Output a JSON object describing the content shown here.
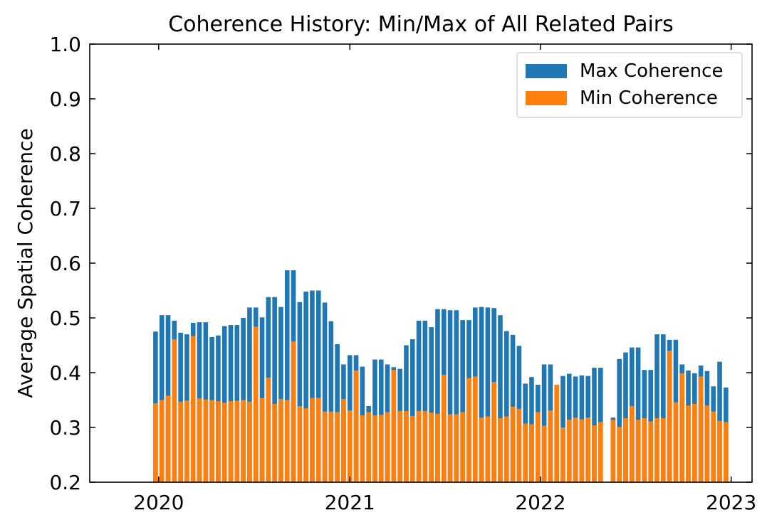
{
  "chart_data": {
    "type": "bar",
    "title": "Coherence History: Min/Max of All Related Pairs",
    "xlabel": "",
    "ylabel": "Average Spatial Coherence",
    "ylim": [
      0.2,
      1.0
    ],
    "xlim": [
      "2019-08-22",
      "2023-02-10"
    ],
    "yticks": [
      0.2,
      0.3,
      0.4,
      0.5,
      0.6,
      0.7,
      0.8,
      0.9,
      1.0
    ],
    "ytick_labels": [
      "0.2",
      "0.3",
      "0.4",
      "0.5",
      "0.6",
      "0.7",
      "0.8",
      "0.9",
      "1.0"
    ],
    "xticks": [
      "2020-01-01",
      "2021-01-01",
      "2022-01-01",
      "2023-01-01"
    ],
    "xtick_labels": [
      "2020",
      "2021",
      "2022",
      "2023"
    ],
    "bar_width_days": 9,
    "grid": false,
    "legend": {
      "position": "top-right"
    },
    "x": [
      "2019-12-26",
      "2020-01-07",
      "2020-01-19",
      "2020-01-31",
      "2020-02-12",
      "2020-02-24",
      "2020-03-07",
      "2020-03-19",
      "2020-03-31",
      "2020-04-12",
      "2020-04-24",
      "2020-05-06",
      "2020-05-18",
      "2020-05-30",
      "2020-06-11",
      "2020-06-23",
      "2020-07-05",
      "2020-07-17",
      "2020-07-29",
      "2020-08-10",
      "2020-08-22",
      "2020-09-03",
      "2020-09-15",
      "2020-09-27",
      "2020-10-09",
      "2020-10-21",
      "2020-11-02",
      "2020-11-14",
      "2020-11-26",
      "2020-12-08",
      "2020-12-20",
      "2021-01-01",
      "2021-01-13",
      "2021-01-25",
      "2021-02-06",
      "2021-02-18",
      "2021-03-02",
      "2021-03-14",
      "2021-03-26",
      "2021-04-07",
      "2021-04-19",
      "2021-05-01",
      "2021-05-13",
      "2021-05-25",
      "2021-06-06",
      "2021-06-18",
      "2021-06-30",
      "2021-07-12",
      "2021-07-24",
      "2021-08-05",
      "2021-08-17",
      "2021-08-29",
      "2021-09-10",
      "2021-09-22",
      "2021-10-04",
      "2021-10-16",
      "2021-10-28",
      "2021-11-09",
      "2021-11-21",
      "2021-12-03",
      "2021-12-15",
      "2021-12-27",
      "2022-01-08",
      "2022-01-20",
      "2022-02-01",
      "2022-02-13",
      "2022-02-25",
      "2022-03-09",
      "2022-03-21",
      "2022-04-02",
      "2022-04-14",
      "2022-04-26",
      "2022-05-20",
      "2022-06-01",
      "2022-06-13",
      "2022-06-25",
      "2022-07-07",
      "2022-07-19",
      "2022-07-31",
      "2022-08-12",
      "2022-08-24",
      "2022-09-05",
      "2022-09-17",
      "2022-09-29",
      "2022-10-11",
      "2022-10-23",
      "2022-11-04",
      "2022-11-16",
      "2022-11-28",
      "2022-12-10",
      "2022-12-22"
    ],
    "series": [
      {
        "name": "Max Coherence",
        "color": "#1f77b4",
        "values": [
          0.475,
          0.505,
          0.505,
          0.495,
          0.473,
          0.47,
          0.491,
          0.492,
          0.492,
          0.465,
          0.468,
          0.485,
          0.487,
          0.487,
          0.5,
          0.519,
          0.519,
          0.501,
          0.538,
          0.538,
          0.52,
          0.587,
          0.587,
          0.529,
          0.548,
          0.55,
          0.55,
          0.528,
          0.494,
          0.452,
          0.415,
          0.432,
          0.432,
          0.411,
          0.339,
          0.424,
          0.424,
          0.415,
          0.41,
          0.407,
          0.45,
          0.461,
          0.495,
          0.495,
          0.483,
          0.516,
          0.516,
          0.514,
          0.514,
          0.496,
          0.496,
          0.519,
          0.52,
          0.519,
          0.518,
          0.505,
          0.476,
          0.469,
          0.449,
          0.38,
          0.392,
          0.378,
          0.415,
          0.415,
          0.32,
          0.394,
          0.398,
          0.393,
          0.395,
          0.394,
          0.409,
          0.409,
          0.318,
          0.425,
          0.437,
          0.446,
          0.446,
          0.405,
          0.405,
          0.47,
          0.47,
          0.46,
          0.46,
          0.415,
          0.404,
          0.399,
          0.413,
          0.403,
          0.375,
          0.42,
          0.373
        ]
      },
      {
        "name": "Min Coherence",
        "color": "#ff7f0e",
        "values": [
          0.344,
          0.35,
          0.358,
          0.461,
          0.347,
          0.349,
          0.467,
          0.353,
          0.351,
          0.35,
          0.348,
          0.345,
          0.348,
          0.349,
          0.35,
          0.347,
          0.484,
          0.354,
          0.391,
          0.343,
          0.352,
          0.35,
          0.457,
          0.339,
          0.335,
          0.354,
          0.354,
          0.329,
          0.329,
          0.328,
          0.352,
          0.331,
          0.404,
          0.322,
          0.328,
          0.322,
          0.323,
          0.328,
          0.405,
          0.33,
          0.33,
          0.321,
          0.33,
          0.33,
          0.327,
          0.325,
          0.396,
          0.324,
          0.324,
          0.328,
          0.39,
          0.393,
          0.318,
          0.32,
          0.383,
          0.317,
          0.32,
          0.338,
          0.334,
          0.307,
          0.306,
          0.328,
          0.303,
          0.331,
          0.378,
          0.3,
          0.314,
          0.318,
          0.315,
          0.318,
          0.304,
          0.31,
          0.314,
          0.301,
          0.317,
          0.339,
          0.314,
          0.317,
          0.311,
          0.317,
          0.317,
          0.44,
          0.346,
          0.399,
          0.34,
          0.343,
          0.393,
          0.34,
          0.329,
          0.312,
          0.31
        ]
      }
    ]
  }
}
